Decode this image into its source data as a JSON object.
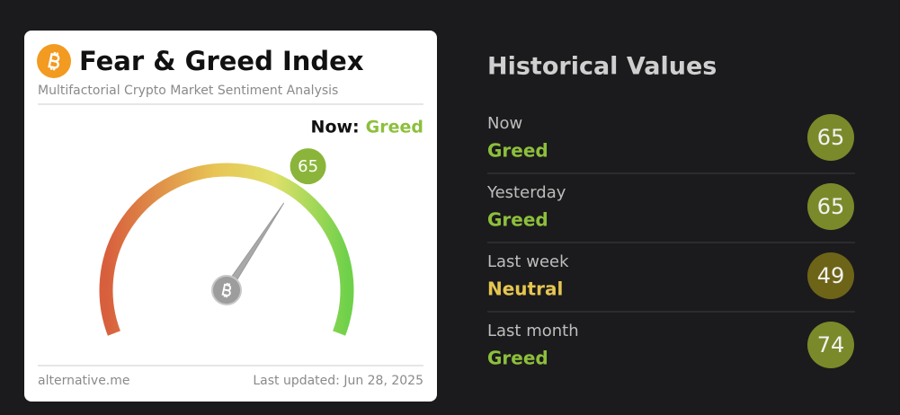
{
  "card": {
    "title": "Fear & Greed Index",
    "subtitle": "Multifactorial Crypto Market Sentiment Analysis",
    "now_prefix": "Now:",
    "now_label": "Greed",
    "now_color": "#8dbf3c",
    "gauge": {
      "value": 65,
      "range": [
        0,
        100
      ],
      "bubble_color": "#8ab53a"
    },
    "footer_left": "alternative.me",
    "footer_right": "Last updated: Jun 28, 2025"
  },
  "history": {
    "title": "Historical Values",
    "rows": [
      {
        "period": "Now",
        "label": "Greed",
        "value": 65,
        "color": "#8dbf3c",
        "badge_color": "#7a8a2a"
      },
      {
        "period": "Yesterday",
        "label": "Greed",
        "value": 65,
        "color": "#8dbf3c",
        "badge_color": "#7a8a2a"
      },
      {
        "period": "Last week",
        "label": "Neutral",
        "value": 49,
        "color": "#e5c650",
        "badge_color": "#6e6418"
      },
      {
        "period": "Last month",
        "label": "Greed",
        "value": 74,
        "color": "#8dbf3c",
        "badge_color": "#7a8a2a"
      }
    ]
  }
}
